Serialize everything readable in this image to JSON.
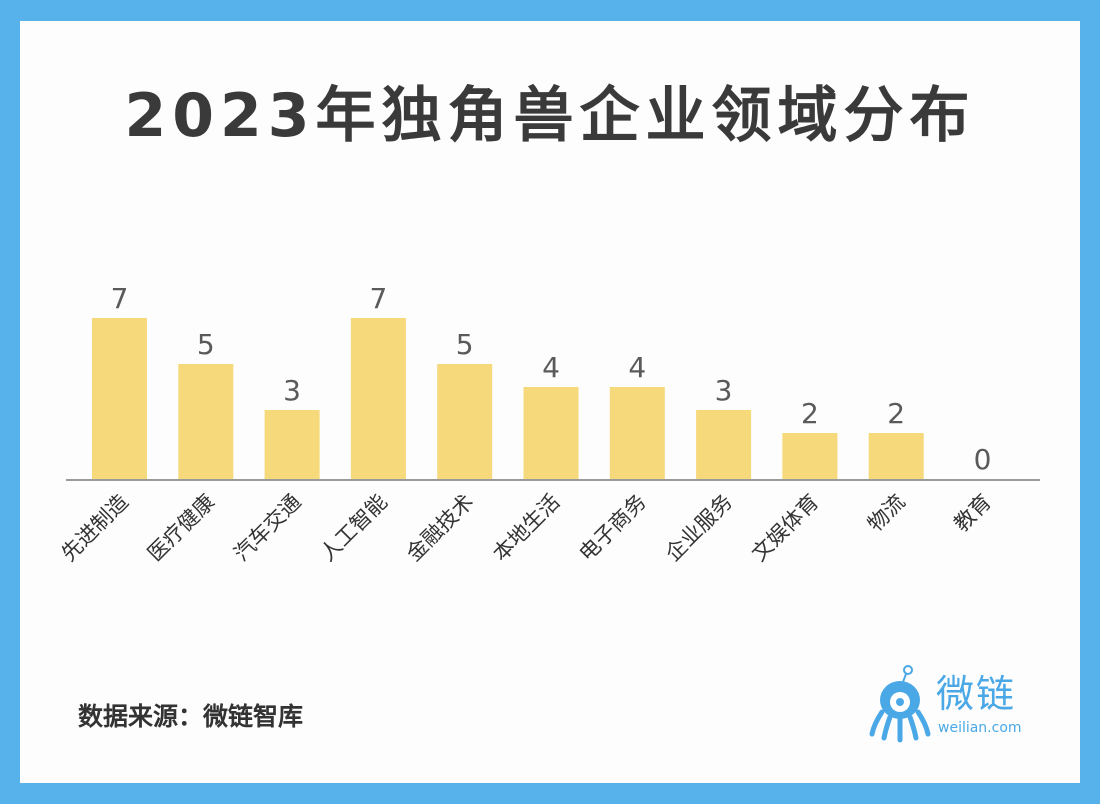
{
  "chart_data": {
    "type": "bar",
    "title": "2023年独角兽企业领域分布",
    "categories": [
      "先进制造",
      "医疗健康",
      "汽车交通",
      "人工智能",
      "金融技术",
      "本地生活",
      "电子商务",
      "企业服务",
      "文娱体育",
      "物流",
      "教育"
    ],
    "values": [
      7,
      5,
      3,
      7,
      5,
      4,
      4,
      3,
      2,
      2,
      0
    ],
    "bar_color": "#F6D97A",
    "axis_color": "#9a9a9a",
    "ylim": [
      0,
      7
    ],
    "grid": false,
    "legend": "none"
  },
  "source": "数据来源：微链智库",
  "brand": {
    "name": "微链",
    "url": "weilian.com",
    "icon": "octopus-mascot-icon",
    "color": "#4AA8E6"
  },
  "colors": {
    "frame": "#57B2EC",
    "card": "#FDFDFD",
    "title": "#3A3A3A"
  }
}
